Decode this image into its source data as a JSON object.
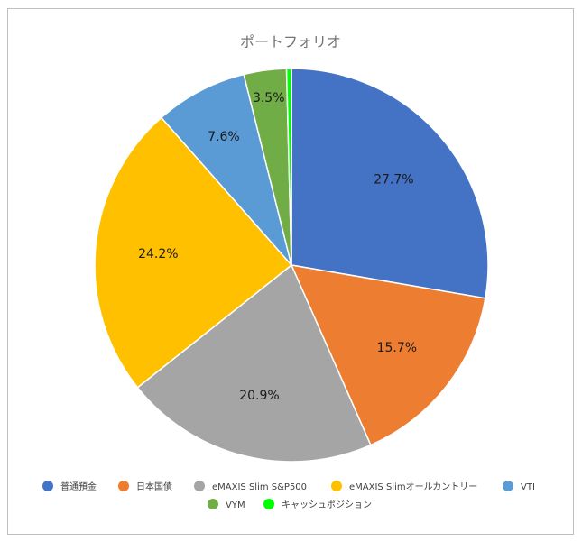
{
  "chart_data": {
    "type": "pie",
    "title": "ポートフォリオ",
    "legend_position": "bottom",
    "slices": [
      {
        "name": "普通預金",
        "value": 27.7,
        "label": "27.7%",
        "color": "#4472C4"
      },
      {
        "name": "日本国債",
        "value": 15.7,
        "label": "15.7%",
        "color": "#ED7D31"
      },
      {
        "name": "eMAXIS Slim S&P500",
        "value": 20.9,
        "label": "20.9%",
        "color": "#A5A5A5"
      },
      {
        "name": "eMAXIS Slimオールカントリー",
        "value": 24.2,
        "label": "24.2%",
        "color": "#FFC000"
      },
      {
        "name": "VTI",
        "value": 7.6,
        "label": "7.6%",
        "color": "#5B9BD5"
      },
      {
        "name": "VYM",
        "value": 3.5,
        "label": "3.5%",
        "color": "#70AD47"
      },
      {
        "name": "キャッシュポジション",
        "value": 0.4,
        "label": "",
        "color": "#00FF00"
      }
    ]
  }
}
